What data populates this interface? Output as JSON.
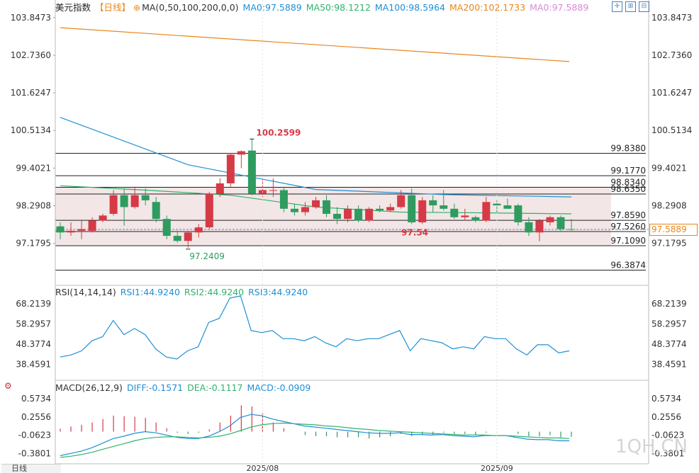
{
  "header": {
    "title": "美元指数",
    "period": "【日线】",
    "ma_params": "MA(0,50,100,200,0,0)",
    "ma_items": [
      {
        "label": "MA0:97.5889",
        "color": "#1e8fd6"
      },
      {
        "label": "MA50:98.1212",
        "color": "#2fb36b"
      },
      {
        "label": "MA100:98.5964",
        "color": "#1e8fd6"
      },
      {
        "label": "MA200:102.1733",
        "color": "#e8861a"
      },
      {
        "label": "MA0:97.5889",
        "color": "#d78ad8"
      }
    ]
  },
  "rsi_header": {
    "params": "RSI(14,14,14)",
    "items": [
      {
        "label": "RSI1:44.9240",
        "color": "#1e8fd6"
      },
      {
        "label": "RSI2:44.9240",
        "color": "#2fb36b"
      },
      {
        "label": "RSI3:44.9240",
        "color": "#1e8fd6"
      }
    ]
  },
  "macd_header": {
    "params": "MACD(26,12,9)",
    "items": [
      {
        "label": "DIFF:-0.1571",
        "color": "#1e8fd6"
      },
      {
        "label": "DEA:-0.1117",
        "color": "#2fb36b"
      },
      {
        "label": "MACD:-0.0909",
        "color": "#1e8fd6"
      }
    ]
  },
  "current_price_tag": "97.5889",
  "watermark": "1QH.CN",
  "period_button": "日线",
  "chart_data": {
    "type": "candlestick",
    "price_axis": {
      "ylim": [
        96.0,
        104.2
      ],
      "ticks": [
        "103.8473",
        "102.7360",
        "101.6247",
        "100.5134",
        "99.4021",
        "98.2908",
        "97.1795"
      ]
    },
    "levels": [
      "99.8380",
      "99.1770",
      "98.8340",
      "98.6350",
      "97.8590",
      "97.5260",
      "97.1090",
      "96.3874"
    ],
    "shaded_range": [
      97.1,
      98.85
    ],
    "annotations": {
      "high": "100.2599",
      "low": "97.2409",
      "mid_label": "97.54"
    },
    "candles": [
      {
        "o": 97.68,
        "h": 97.8,
        "l": 97.3,
        "c": 97.5
      },
      {
        "o": 97.5,
        "h": 97.8,
        "l": 97.4,
        "c": 97.55
      },
      {
        "o": 97.55,
        "h": 97.85,
        "l": 97.3,
        "c": 97.6
      },
      {
        "o": 97.55,
        "h": 97.95,
        "l": 97.5,
        "c": 97.85
      },
      {
        "o": 97.85,
        "h": 98.05,
        "l": 97.8,
        "c": 98.0
      },
      {
        "o": 98.05,
        "h": 98.75,
        "l": 98.0,
        "c": 98.6
      },
      {
        "o": 98.6,
        "h": 98.8,
        "l": 97.7,
        "c": 98.25
      },
      {
        "o": 98.25,
        "h": 98.85,
        "l": 98.2,
        "c": 98.6
      },
      {
        "o": 98.6,
        "h": 98.8,
        "l": 98.3,
        "c": 98.45
      },
      {
        "o": 98.4,
        "h": 98.55,
        "l": 97.8,
        "c": 97.9
      },
      {
        "o": 97.9,
        "h": 98.0,
        "l": 97.3,
        "c": 97.4
      },
      {
        "o": 97.4,
        "h": 97.55,
        "l": 97.2,
        "c": 97.25
      },
      {
        "o": 97.25,
        "h": 97.55,
        "l": 97.05,
        "c": 97.5
      },
      {
        "o": 97.5,
        "h": 97.75,
        "l": 97.35,
        "c": 97.65
      },
      {
        "o": 97.65,
        "h": 98.7,
        "l": 97.6,
        "c": 98.65
      },
      {
        "o": 98.65,
        "h": 99.1,
        "l": 98.55,
        "c": 98.95
      },
      {
        "o": 98.95,
        "h": 99.85,
        "l": 98.85,
        "c": 99.8
      },
      {
        "o": 99.8,
        "h": 99.92,
        "l": 99.4,
        "c": 99.9
      },
      {
        "o": 99.92,
        "h": 100.26,
        "l": 98.6,
        "c": 98.65
      },
      {
        "o": 98.65,
        "h": 99.05,
        "l": 98.55,
        "c": 98.75
      },
      {
        "o": 98.75,
        "h": 99.1,
        "l": 98.55,
        "c": 98.75
      },
      {
        "o": 98.75,
        "h": 98.85,
        "l": 98.1,
        "c": 98.2
      },
      {
        "o": 98.2,
        "h": 98.35,
        "l": 98.0,
        "c": 98.1
      },
      {
        "o": 98.1,
        "h": 98.4,
        "l": 98.0,
        "c": 98.25
      },
      {
        "o": 98.25,
        "h": 98.55,
        "l": 98.2,
        "c": 98.45
      },
      {
        "o": 98.45,
        "h": 98.6,
        "l": 97.95,
        "c": 98.05
      },
      {
        "o": 98.05,
        "h": 98.25,
        "l": 97.75,
        "c": 97.9
      },
      {
        "o": 97.9,
        "h": 98.3,
        "l": 97.8,
        "c": 98.2
      },
      {
        "o": 98.2,
        "h": 98.3,
        "l": 97.8,
        "c": 97.85
      },
      {
        "o": 97.85,
        "h": 98.25,
        "l": 97.8,
        "c": 98.2
      },
      {
        "o": 98.2,
        "h": 98.3,
        "l": 98.1,
        "c": 98.15
      },
      {
        "o": 98.15,
        "h": 98.35,
        "l": 98.1,
        "c": 98.25
      },
      {
        "o": 98.25,
        "h": 98.75,
        "l": 98.2,
        "c": 98.6
      },
      {
        "o": 98.6,
        "h": 98.8,
        "l": 97.75,
        "c": 97.8
      },
      {
        "o": 97.8,
        "h": 98.55,
        "l": 97.75,
        "c": 98.45
      },
      {
        "o": 98.45,
        "h": 98.6,
        "l": 98.1,
        "c": 98.3
      },
      {
        "o": 98.3,
        "h": 98.75,
        "l": 98.15,
        "c": 98.2
      },
      {
        "o": 98.2,
        "h": 98.35,
        "l": 97.9,
        "c": 97.95
      },
      {
        "o": 97.95,
        "h": 98.2,
        "l": 97.85,
        "c": 98.0
      },
      {
        "o": 97.95,
        "h": 98.0,
        "l": 97.8,
        "c": 97.85
      },
      {
        "o": 97.85,
        "h": 98.55,
        "l": 97.8,
        "c": 98.4
      },
      {
        "o": 98.35,
        "h": 98.45,
        "l": 98.05,
        "c": 98.3
      },
      {
        "o": 98.3,
        "h": 98.5,
        "l": 98.2,
        "c": 98.2
      },
      {
        "o": 98.3,
        "h": 98.35,
        "l": 97.7,
        "c": 97.8
      },
      {
        "o": 97.8,
        "h": 97.95,
        "l": 97.4,
        "c": 97.5
      },
      {
        "o": 97.5,
        "h": 97.9,
        "l": 97.24,
        "c": 97.85
      },
      {
        "o": 97.8,
        "h": 98.0,
        "l": 97.7,
        "c": 97.95
      },
      {
        "o": 97.95,
        "h": 98.0,
        "l": 97.55,
        "c": 97.6
      },
      {
        "o": 97.6,
        "h": 97.9,
        "l": 97.55,
        "c": 97.58
      }
    ],
    "ma200": [
      103.55,
      102.55
    ],
    "ma100": [
      100.9,
      99.5,
      98.77,
      98.62,
      98.55
    ],
    "ma50": [
      98.88,
      98.75,
      98.6,
      98.25,
      98.1,
      98.08,
      98.05
    ],
    "rsi": {
      "ylim": [
        33,
        72
      ],
      "ticks": [
        "68.2139",
        "58.2957",
        "48.3774",
        "38.4591"
      ],
      "values": [
        42,
        43,
        45,
        50,
        52,
        60,
        53,
        56,
        53,
        46,
        42,
        41,
        45,
        47,
        59,
        61,
        71,
        72,
        55,
        54,
        55,
        51,
        51,
        50,
        52,
        49,
        47,
        51,
        50,
        51,
        51,
        53,
        55,
        45,
        51,
        50,
        49,
        46,
        47,
        46,
        52,
        51,
        51,
        46,
        43,
        48,
        48,
        44,
        45
      ]
    },
    "macd": {
      "ylim": [
        -0.5,
        0.7
      ],
      "ticks": [
        "0.5734",
        "0.2556",
        "-0.0623",
        "-0.3801"
      ],
      "diff": [
        -0.42,
        -0.38,
        -0.34,
        -0.28,
        -0.2,
        -0.12,
        -0.08,
        -0.03,
        0.0,
        -0.02,
        -0.06,
        -0.1,
        -0.12,
        -0.12,
        -0.08,
        0.0,
        0.1,
        0.25,
        0.3,
        0.28,
        0.22,
        0.18,
        0.14,
        0.1,
        0.08,
        0.06,
        0.04,
        0.02,
        0.0,
        -0.02,
        -0.03,
        -0.03,
        -0.02,
        -0.05,
        -0.05,
        -0.06,
        -0.05,
        -0.07,
        -0.08,
        -0.09,
        -0.07,
        -0.07,
        -0.07,
        -0.1,
        -0.13,
        -0.14,
        -0.14,
        -0.16,
        -0.16
      ],
      "dea": [
        -0.45,
        -0.43,
        -0.4,
        -0.36,
        -0.31,
        -0.26,
        -0.21,
        -0.16,
        -0.12,
        -0.1,
        -0.09,
        -0.09,
        -0.1,
        -0.11,
        -0.1,
        -0.08,
        -0.04,
        0.02,
        0.08,
        0.12,
        0.14,
        0.15,
        0.14,
        0.13,
        0.12,
        0.1,
        0.09,
        0.07,
        0.05,
        0.04,
        0.02,
        0.01,
        0.0,
        -0.01,
        -0.02,
        -0.03,
        -0.04,
        -0.05,
        -0.06,
        -0.06,
        -0.06,
        -0.07,
        -0.07,
        -0.08,
        -0.09,
        -0.1,
        -0.11,
        -0.11,
        -0.12
      ],
      "hist": [
        0.05,
        0.09,
        0.12,
        0.16,
        0.22,
        0.28,
        0.27,
        0.26,
        0.24,
        0.16,
        0.06,
        -0.02,
        -0.04,
        -0.02,
        0.04,
        0.16,
        0.28,
        0.46,
        0.44,
        0.32,
        0.16,
        0.06,
        0.0,
        -0.06,
        -0.08,
        -0.08,
        -0.1,
        -0.1,
        -0.1,
        -0.12,
        -0.1,
        -0.08,
        -0.04,
        -0.08,
        -0.06,
        -0.06,
        -0.02,
        -0.04,
        -0.04,
        -0.06,
        -0.02,
        0.0,
        0.0,
        -0.04,
        -0.08,
        -0.08,
        -0.06,
        -0.1,
        -0.09
      ]
    },
    "x_ticks": [
      {
        "label": "2025/08",
        "index": 19
      },
      {
        "label": "2025/09",
        "index": 41
      }
    ]
  }
}
